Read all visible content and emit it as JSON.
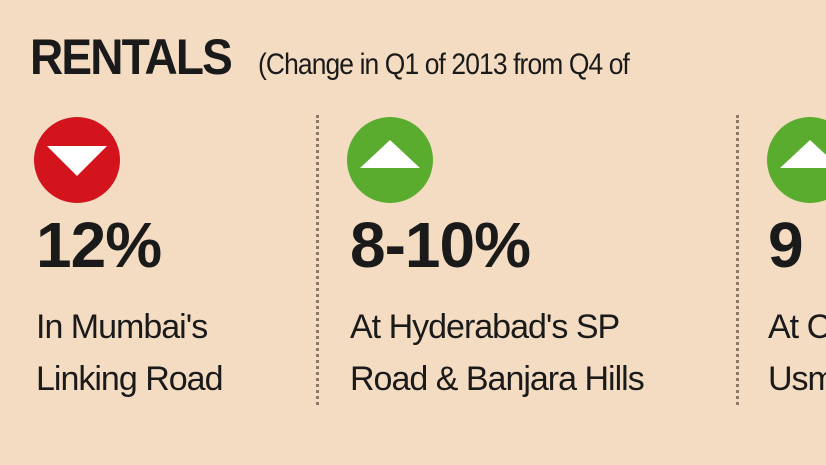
{
  "header": {
    "title": "RENTALS",
    "subtitle": "(Change in Q1 of 2013 from Q4 of"
  },
  "items": [
    {
      "direction": "down",
      "value": "12%",
      "lines": [
        "In Mumbai's",
        "Linking Road"
      ]
    },
    {
      "direction": "up",
      "value": "8-10%",
      "lines": [
        "At Hyderabad's SP",
        "Road & Banjara Hills"
      ]
    },
    {
      "direction": "up",
      "value": "9",
      "lines": [
        "At C",
        "Usm"
      ]
    }
  ]
}
